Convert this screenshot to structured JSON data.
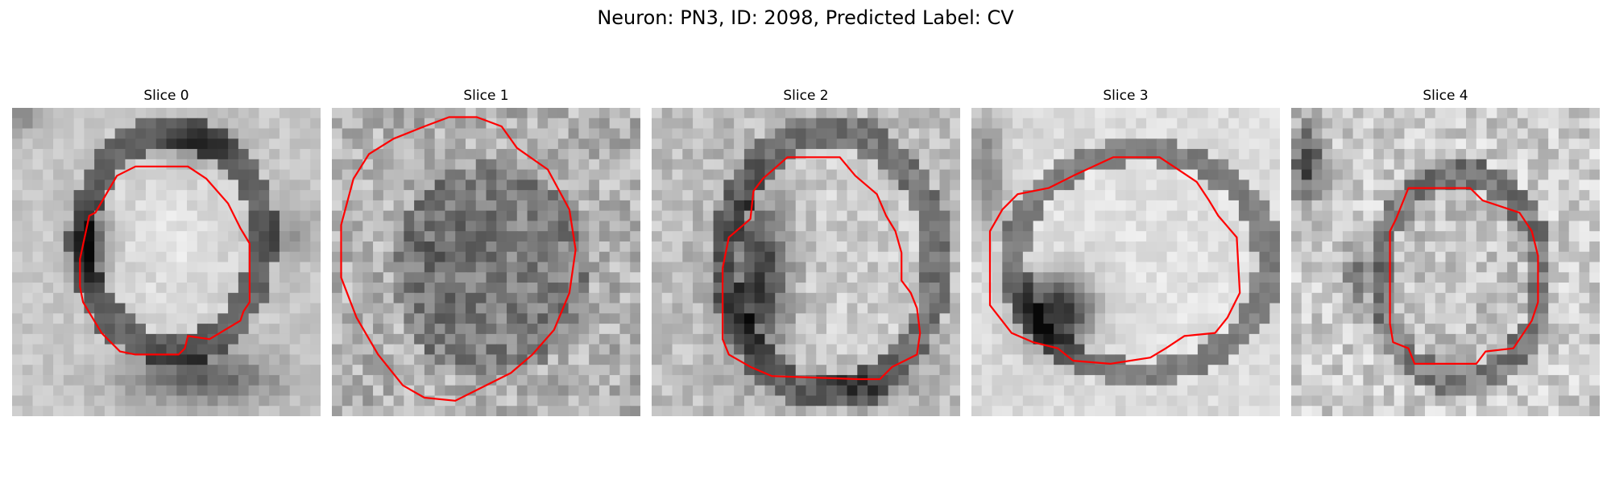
{
  "figure": {
    "title": "Neuron: PN3, ID: 2098, Predicted Label: CV",
    "colors": {
      "contour": "#ff0000",
      "background": "#ffffff"
    },
    "colormap": "gray"
  },
  "slices": [
    {
      "title": "Slice 0"
    },
    {
      "title": "Slice 1"
    },
    {
      "title": "Slice 2"
    },
    {
      "title": "Slice 3"
    },
    {
      "title": "Slice 4"
    }
  ]
}
